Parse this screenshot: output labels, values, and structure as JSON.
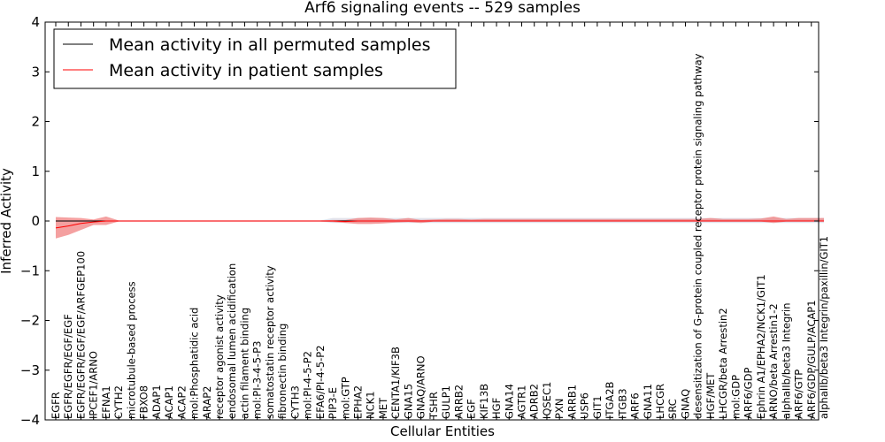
{
  "chart_data": {
    "type": "line",
    "title": "Arf6 signaling events -- 529 samples",
    "xlabel": "Cellular Entities",
    "ylabel": "Inferred Activity",
    "ylim": [
      -4,
      4
    ],
    "yticks": [
      "−4",
      "−3",
      "−2",
      "−1",
      "0",
      "1",
      "2",
      "3",
      "4"
    ],
    "legend_position": "top-left",
    "colors": {
      "permuted": "#000000",
      "patient": "#ff0000",
      "patient_band": "#f08080",
      "permuted_band": "#c8c8d8"
    },
    "categories": [
      "EGFR",
      "EGFR/EGFR/EGF/EGF",
      "EGFR/EGFR/EGF/EGF/ARFGEP100",
      "IPCEF1/ARNO",
      "EFNA1",
      "CYTH2",
      "microtubule-based process",
      "FBXO8",
      "ADAP1",
      "ACAP1",
      "ACAP2",
      "mol:Phosphatidic acid",
      "ARAP2",
      "receptor agonist activity",
      "endosomal lumen acidification",
      "actin filament binding",
      "mol:PI-3-4-5-P3",
      "somatostatin receptor activity",
      "fibronectin binding",
      "CYTH3",
      "mol:PI-4-5-P2",
      "EFA6/PI-4-5-P2",
      "PIP3-E",
      "mol:GTP",
      "EPHA2",
      "NCK1",
      "MET",
      "CENTA1/KIF3B",
      "GNA15",
      "GNAQ/ARNO",
      "TSHR",
      "GULP1",
      "ARRB2",
      "EGF",
      "KIF13B",
      "HGF",
      "GNA14",
      "AGTR1",
      "ADRB2",
      "IQSEC1",
      "PXN",
      "ARRB1",
      "USP6",
      "GIT1",
      "ITGA2B",
      "ITGB3",
      "ARF6",
      "GNA11",
      "LHCGR",
      "SRC",
      "GNAQ",
      "desensitization of G-protein coupled receptor protein signaling pathway",
      "HGF/MET",
      "LHCGR/beta Arrestin2",
      "mol:GDP",
      "ARF6/GDP",
      "Ephrin A1/EPHA2/NCK1/GIT1",
      "ARNO/beta Arrestin1-2",
      "alphaIIb/beta3 Integrin",
      "ARF6/GTP",
      "ARF6/GDP/GULP/ACAP1",
      "alphaIIb/beta3 Integrin/paxillin/GIT1"
    ],
    "series": [
      {
        "name": "Mean activity in all permuted samples",
        "values": [
          0,
          0,
          0,
          0,
          0,
          0,
          0,
          0,
          0,
          0,
          0,
          0,
          0,
          0,
          0,
          0,
          0,
          0,
          0,
          0,
          0,
          0,
          0,
          0,
          0,
          0,
          0,
          0,
          0,
          0,
          0,
          0,
          0,
          0,
          0,
          0,
          0,
          0,
          0,
          0,
          0,
          0,
          0,
          0,
          0,
          0,
          0,
          0,
          0,
          0,
          0,
          0,
          0,
          0,
          0,
          0,
          0,
          0,
          0,
          0,
          0,
          0
        ],
        "lower": [
          -0.01,
          -0.01,
          -0.01,
          -0.01,
          -0.01,
          -0.01,
          -0.01,
          -0.01,
          -0.01,
          -0.01,
          -0.01,
          -0.01,
          -0.01,
          -0.01,
          -0.01,
          -0.01,
          -0.01,
          -0.01,
          -0.01,
          -0.01,
          -0.01,
          -0.01,
          -0.04,
          -0.04,
          -0.04,
          -0.04,
          -0.04,
          -0.04,
          -0.04,
          -0.04,
          -0.04,
          -0.04,
          -0.04,
          -0.04,
          -0.04,
          -0.04,
          -0.04,
          -0.04,
          -0.04,
          -0.04,
          -0.04,
          -0.04,
          -0.04,
          -0.04,
          -0.04,
          -0.04,
          -0.04,
          -0.04,
          -0.04,
          -0.04,
          -0.04,
          -0.04,
          -0.04,
          -0.04,
          -0.04,
          -0.04,
          -0.04,
          -0.04,
          -0.04,
          -0.04,
          -0.04,
          -0.04
        ],
        "upper": [
          0.01,
          0.01,
          0.01,
          0.01,
          0.01,
          0.01,
          0.01,
          0.01,
          0.01,
          0.01,
          0.01,
          0.01,
          0.01,
          0.01,
          0.01,
          0.01,
          0.01,
          0.01,
          0.01,
          0.01,
          0.01,
          0.01,
          0.06,
          0.06,
          0.06,
          0.06,
          0.06,
          0.06,
          0.06,
          0.06,
          0.06,
          0.06,
          0.06,
          0.06,
          0.06,
          0.06,
          0.06,
          0.06,
          0.06,
          0.06,
          0.06,
          0.06,
          0.06,
          0.06,
          0.06,
          0.06,
          0.06,
          0.06,
          0.06,
          0.06,
          0.06,
          0.06,
          0.06,
          0.06,
          0.06,
          0.06,
          0.06,
          0.06,
          0.06,
          0.06,
          0.06,
          0.06
        ]
      },
      {
        "name": "Mean activity in patient samples",
        "values": [
          -0.14,
          -0.1,
          -0.05,
          -0.02,
          0,
          0,
          0,
          0,
          0,
          0,
          0,
          0,
          0,
          0,
          0,
          0,
          0,
          0,
          0,
          0,
          0,
          0,
          0,
          -0.01,
          0,
          0,
          0,
          0,
          0,
          0,
          0,
          0,
          0,
          0,
          0,
          0,
          0,
          0,
          0,
          0,
          0,
          0,
          0,
          0,
          0,
          0,
          0,
          0,
          0,
          0,
          0,
          0,
          0,
          0,
          0,
          0,
          0,
          0,
          0,
          0,
          0,
          0
        ],
        "lower": [
          -0.35,
          -0.28,
          -0.18,
          -0.08,
          -0.08,
          -0.01,
          -0.01,
          -0.01,
          -0.01,
          -0.01,
          -0.01,
          -0.01,
          -0.01,
          -0.01,
          -0.01,
          -0.01,
          -0.01,
          -0.01,
          -0.01,
          -0.01,
          -0.01,
          -0.01,
          -0.02,
          -0.04,
          -0.06,
          -0.06,
          -0.05,
          -0.03,
          -0.02,
          -0.04,
          -0.01,
          -0.01,
          -0.01,
          -0.01,
          -0.01,
          -0.01,
          -0.01,
          -0.01,
          -0.01,
          -0.01,
          -0.01,
          -0.01,
          -0.01,
          -0.01,
          -0.01,
          -0.01,
          -0.01,
          -0.01,
          -0.01,
          -0.01,
          -0.01,
          -0.01,
          -0.01,
          -0.01,
          -0.01,
          -0.01,
          -0.01,
          -0.04,
          -0.01,
          -0.01,
          -0.01,
          -0.01
        ],
        "upper": [
          0.08,
          0.07,
          0.06,
          0.03,
          0.09,
          0.01,
          0.01,
          0.01,
          0.01,
          0.01,
          0.01,
          0.01,
          0.01,
          0.01,
          0.01,
          0.01,
          0.01,
          0.01,
          0.01,
          0.01,
          0.01,
          0.01,
          0.02,
          0.02,
          0.06,
          0.07,
          0.06,
          0.03,
          0.06,
          0.02,
          0.03,
          0.04,
          0.04,
          0.03,
          0.04,
          0.04,
          0.04,
          0.04,
          0.04,
          0.04,
          0.04,
          0.04,
          0.04,
          0.04,
          0.04,
          0.04,
          0.04,
          0.04,
          0.04,
          0.04,
          0.04,
          0.04,
          0.06,
          0.04,
          0.04,
          0.04,
          0.05,
          0.09,
          0.04,
          0.06,
          0.06,
          0.06
        ]
      }
    ]
  }
}
